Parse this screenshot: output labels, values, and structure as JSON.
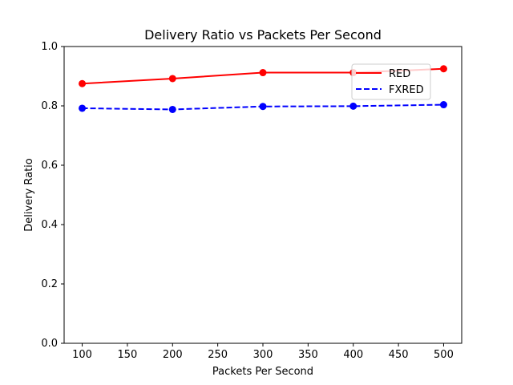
{
  "chart_data": {
    "type": "line",
    "title": "Delivery Ratio vs Packets Per Second",
    "xlabel": "Packets Per Second",
    "ylabel": "Delivery Ratio",
    "x": [
      100,
      200,
      300,
      400,
      500
    ],
    "xlim": [
      80,
      520
    ],
    "ylim": [
      0.0,
      1.0
    ],
    "xticks": [
      "100",
      "150",
      "200",
      "250",
      "300",
      "350",
      "400",
      "450",
      "500"
    ],
    "yticks": [
      "0.0",
      "0.2",
      "0.4",
      "0.6",
      "0.8",
      "1.0"
    ],
    "grid": false,
    "legend_placement": "upper-right",
    "series": [
      {
        "name": "RED",
        "values": [
          0.875,
          0.892,
          0.912,
          0.912,
          0.925
        ],
        "color": "#ff0000",
        "line_style": "solid",
        "marker": "circle"
      },
      {
        "name": "FXRED",
        "values": [
          0.792,
          0.788,
          0.798,
          0.799,
          0.804
        ],
        "color": "#0000ff",
        "line_style": "dashed",
        "marker": "circle"
      }
    ]
  }
}
